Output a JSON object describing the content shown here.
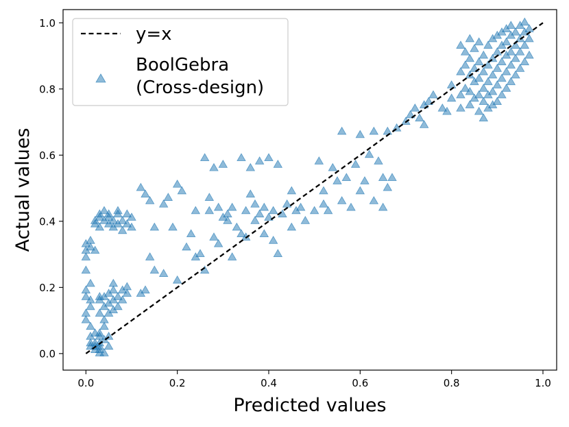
{
  "chart_data": {
    "type": "scatter",
    "title": "",
    "xlabel": "Predicted values",
    "ylabel": "Actual values",
    "xlim": [
      -0.05,
      1.03
    ],
    "ylim": [
      -0.05,
      1.04
    ],
    "x_ticks": [
      0.0,
      0.2,
      0.4,
      0.6,
      0.8,
      1.0
    ],
    "y_ticks": [
      0.0,
      0.2,
      0.4,
      0.6,
      0.8,
      1.0
    ],
    "x_tick_labels": [
      "0.0",
      "0.2",
      "0.4",
      "0.6",
      "0.8",
      "1.0"
    ],
    "y_tick_labels": [
      "0.0",
      "0.2",
      "0.4",
      "0.6",
      "0.8",
      "1.0"
    ],
    "legend_position": "upper-left",
    "series": [
      {
        "name": "y=x",
        "kind": "line",
        "style": "dashed",
        "color": "#000000",
        "x": [
          0,
          1
        ],
        "y": [
          0,
          1
        ]
      },
      {
        "name": "BoolGebra\n(Cross-design)",
        "kind": "scatter",
        "marker": "triangle",
        "color": "#1f77b4",
        "alpha": 0.5,
        "points": [
          [
            0.0,
            0.1
          ],
          [
            0.0,
            0.12
          ],
          [
            0.0,
            0.17
          ],
          [
            0.0,
            0.19
          ],
          [
            0.0,
            0.25
          ],
          [
            0.0,
            0.29
          ],
          [
            0.0,
            0.31
          ],
          [
            0.0,
            0.33
          ],
          [
            0.01,
            0.02
          ],
          [
            0.01,
            0.03
          ],
          [
            0.01,
            0.05
          ],
          [
            0.01,
            0.08
          ],
          [
            0.01,
            0.14
          ],
          [
            0.01,
            0.16
          ],
          [
            0.01,
            0.21
          ],
          [
            0.01,
            0.32
          ],
          [
            0.01,
            0.34
          ],
          [
            0.02,
            0.01
          ],
          [
            0.02,
            0.02
          ],
          [
            0.02,
            0.03
          ],
          [
            0.02,
            0.06
          ],
          [
            0.02,
            0.31
          ],
          [
            0.02,
            0.39
          ],
          [
            0.02,
            0.4
          ],
          [
            0.03,
            0.0
          ],
          [
            0.03,
            0.01
          ],
          [
            0.03,
            0.02
          ],
          [
            0.03,
            0.03
          ],
          [
            0.03,
            0.05
          ],
          [
            0.03,
            0.06
          ],
          [
            0.03,
            0.12
          ],
          [
            0.03,
            0.16
          ],
          [
            0.03,
            0.17
          ],
          [
            0.03,
            0.38
          ],
          [
            0.03,
            0.41
          ],
          [
            0.03,
            0.42
          ],
          [
            0.04,
            0.0
          ],
          [
            0.04,
            0.04
          ],
          [
            0.04,
            0.08
          ],
          [
            0.04,
            0.1
          ],
          [
            0.04,
            0.14
          ],
          [
            0.04,
            0.17
          ],
          [
            0.04,
            0.4
          ],
          [
            0.04,
            0.43
          ],
          [
            0.05,
            0.02
          ],
          [
            0.05,
            0.05
          ],
          [
            0.05,
            0.12
          ],
          [
            0.05,
            0.15
          ],
          [
            0.05,
            0.18
          ],
          [
            0.05,
            0.39
          ],
          [
            0.05,
            0.41
          ],
          [
            0.05,
            0.42
          ],
          [
            0.06,
            0.13
          ],
          [
            0.06,
            0.16
          ],
          [
            0.06,
            0.19
          ],
          [
            0.06,
            0.21
          ],
          [
            0.06,
            0.38
          ],
          [
            0.06,
            0.4
          ],
          [
            0.07,
            0.14
          ],
          [
            0.07,
            0.17
          ],
          [
            0.07,
            0.39
          ],
          [
            0.07,
            0.42
          ],
          [
            0.07,
            0.43
          ],
          [
            0.08,
            0.16
          ],
          [
            0.08,
            0.19
          ],
          [
            0.08,
            0.37
          ],
          [
            0.08,
            0.4
          ],
          [
            0.09,
            0.18
          ],
          [
            0.09,
            0.2
          ],
          [
            0.09,
            0.39
          ],
          [
            0.09,
            0.42
          ],
          [
            0.1,
            0.38
          ],
          [
            0.1,
            0.41
          ],
          [
            0.12,
            0.5
          ],
          [
            0.12,
            0.18
          ],
          [
            0.13,
            0.48
          ],
          [
            0.13,
            0.19
          ],
          [
            0.14,
            0.29
          ],
          [
            0.14,
            0.46
          ],
          [
            0.15,
            0.25
          ],
          [
            0.15,
            0.38
          ],
          [
            0.17,
            0.24
          ],
          [
            0.17,
            0.45
          ],
          [
            0.18,
            0.47
          ],
          [
            0.19,
            0.38
          ],
          [
            0.2,
            0.51
          ],
          [
            0.2,
            0.22
          ],
          [
            0.21,
            0.49
          ],
          [
            0.22,
            0.32
          ],
          [
            0.23,
            0.36
          ],
          [
            0.24,
            0.29
          ],
          [
            0.24,
            0.43
          ],
          [
            0.25,
            0.3
          ],
          [
            0.26,
            0.25
          ],
          [
            0.26,
            0.59
          ],
          [
            0.27,
            0.43
          ],
          [
            0.27,
            0.47
          ],
          [
            0.28,
            0.56
          ],
          [
            0.28,
            0.35
          ],
          [
            0.29,
            0.44
          ],
          [
            0.29,
            0.33
          ],
          [
            0.3,
            0.57
          ],
          [
            0.3,
            0.41
          ],
          [
            0.31,
            0.4
          ],
          [
            0.31,
            0.42
          ],
          [
            0.32,
            0.44
          ],
          [
            0.32,
            0.29
          ],
          [
            0.33,
            0.38
          ],
          [
            0.34,
            0.36
          ],
          [
            0.34,
            0.59
          ],
          [
            0.35,
            0.43
          ],
          [
            0.35,
            0.35
          ],
          [
            0.36,
            0.48
          ],
          [
            0.36,
            0.56
          ],
          [
            0.37,
            0.4
          ],
          [
            0.37,
            0.45
          ],
          [
            0.38,
            0.58
          ],
          [
            0.38,
            0.42
          ],
          [
            0.39,
            0.44
          ],
          [
            0.39,
            0.36
          ],
          [
            0.4,
            0.41
          ],
          [
            0.4,
            0.59
          ],
          [
            0.41,
            0.34
          ],
          [
            0.41,
            0.43
          ],
          [
            0.42,
            0.3
          ],
          [
            0.42,
            0.57
          ],
          [
            0.43,
            0.42
          ],
          [
            0.44,
            0.45
          ],
          [
            0.45,
            0.38
          ],
          [
            0.45,
            0.49
          ],
          [
            0.46,
            0.43
          ],
          [
            0.47,
            0.44
          ],
          [
            0.48,
            0.4
          ],
          [
            0.5,
            0.43
          ],
          [
            0.51,
            0.58
          ],
          [
            0.52,
            0.45
          ],
          [
            0.52,
            0.49
          ],
          [
            0.53,
            0.43
          ],
          [
            0.54,
            0.56
          ],
          [
            0.55,
            0.52
          ],
          [
            0.56,
            0.46
          ],
          [
            0.56,
            0.67
          ],
          [
            0.57,
            0.53
          ],
          [
            0.58,
            0.44
          ],
          [
            0.59,
            0.57
          ],
          [
            0.6,
            0.66
          ],
          [
            0.6,
            0.49
          ],
          [
            0.61,
            0.52
          ],
          [
            0.62,
            0.6
          ],
          [
            0.63,
            0.46
          ],
          [
            0.63,
            0.67
          ],
          [
            0.64,
            0.58
          ],
          [
            0.65,
            0.53
          ],
          [
            0.65,
            0.44
          ],
          [
            0.66,
            0.67
          ],
          [
            0.66,
            0.5
          ],
          [
            0.67,
            0.53
          ],
          [
            0.68,
            0.68
          ],
          [
            0.7,
            0.7
          ],
          [
            0.71,
            0.72
          ],
          [
            0.72,
            0.74
          ],
          [
            0.73,
            0.71
          ],
          [
            0.74,
            0.69
          ],
          [
            0.74,
            0.75
          ],
          [
            0.75,
            0.76
          ],
          [
            0.76,
            0.78
          ],
          [
            0.78,
            0.74
          ],
          [
            0.79,
            0.73
          ],
          [
            0.8,
            0.77
          ],
          [
            0.8,
            0.81
          ],
          [
            0.82,
            0.74
          ],
          [
            0.82,
            0.78
          ],
          [
            0.82,
            0.85
          ],
          [
            0.82,
            0.93
          ],
          [
            0.83,
            0.8
          ],
          [
            0.83,
            0.87
          ],
          [
            0.83,
            0.91
          ],
          [
            0.84,
            0.75
          ],
          [
            0.84,
            0.79
          ],
          [
            0.84,
            0.84
          ],
          [
            0.84,
            0.89
          ],
          [
            0.84,
            0.95
          ],
          [
            0.85,
            0.77
          ],
          [
            0.85,
            0.82
          ],
          [
            0.85,
            0.86
          ],
          [
            0.85,
            0.92
          ],
          [
            0.86,
            0.73
          ],
          [
            0.86,
            0.78
          ],
          [
            0.86,
            0.83
          ],
          [
            0.86,
            0.88
          ],
          [
            0.86,
            0.94
          ],
          [
            0.87,
            0.71
          ],
          [
            0.87,
            0.76
          ],
          [
            0.87,
            0.8
          ],
          [
            0.87,
            0.85
          ],
          [
            0.87,
            0.9
          ],
          [
            0.88,
            0.74
          ],
          [
            0.88,
            0.78
          ],
          [
            0.88,
            0.82
          ],
          [
            0.88,
            0.87
          ],
          [
            0.88,
            0.93
          ],
          [
            0.89,
            0.75
          ],
          [
            0.89,
            0.79
          ],
          [
            0.89,
            0.84
          ],
          [
            0.89,
            0.89
          ],
          [
            0.89,
            0.95
          ],
          [
            0.9,
            0.76
          ],
          [
            0.9,
            0.81
          ],
          [
            0.9,
            0.86
          ],
          [
            0.9,
            0.91
          ],
          [
            0.9,
            0.96
          ],
          [
            0.91,
            0.78
          ],
          [
            0.91,
            0.83
          ],
          [
            0.91,
            0.88
          ],
          [
            0.91,
            0.93
          ],
          [
            0.91,
            0.97
          ],
          [
            0.92,
            0.8
          ],
          [
            0.92,
            0.85
          ],
          [
            0.92,
            0.9
          ],
          [
            0.92,
            0.94
          ],
          [
            0.92,
            0.98
          ],
          [
            0.93,
            0.82
          ],
          [
            0.93,
            0.87
          ],
          [
            0.93,
            0.91
          ],
          [
            0.93,
            0.96
          ],
          [
            0.93,
            0.99
          ],
          [
            0.94,
            0.84
          ],
          [
            0.94,
            0.89
          ],
          [
            0.94,
            0.93
          ],
          [
            0.94,
            0.97
          ],
          [
            0.95,
            0.86
          ],
          [
            0.95,
            0.91
          ],
          [
            0.95,
            0.95
          ],
          [
            0.95,
            0.99
          ],
          [
            0.96,
            0.88
          ],
          [
            0.96,
            0.93
          ],
          [
            0.96,
            0.97
          ],
          [
            0.96,
            1.0
          ],
          [
            0.97,
            0.9
          ],
          [
            0.97,
            0.95
          ],
          [
            0.97,
            0.98
          ]
        ]
      }
    ]
  }
}
